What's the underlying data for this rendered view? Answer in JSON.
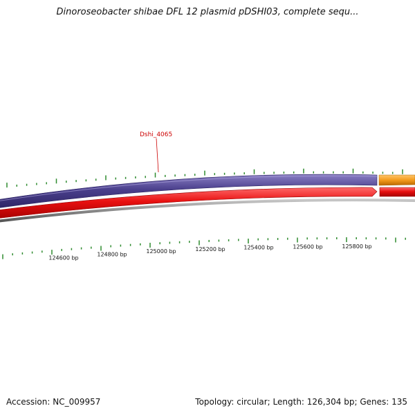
{
  "title": "Dinoroseobacter shibae DFL 12 plasmid pDSHI03, complete sequ...",
  "footer": {
    "accession": "Accession: NC_009957",
    "summary": "Topology: circular; Length: 126,304 bp; Genes: 135"
  },
  "gene_label": "Dshi_4065",
  "scale_labels": [
    "124600 bp",
    "124800 bp",
    "125000 bp",
    "125200 bp",
    "125400 bp",
    "125600 bp",
    "125800 bp"
  ],
  "colors": {
    "plus_strand": "#4a3f8c",
    "minus_strand": "#e81010",
    "orange_feature": "#f39a1c",
    "backbone": "#8a8a8a",
    "ticks": "#2e8b2e",
    "gene_label": "#cc0000"
  }
}
